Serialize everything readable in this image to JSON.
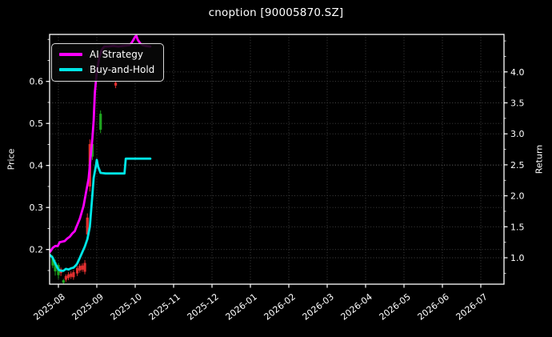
{
  "title": "cnoption [90005870.SZ]",
  "legend": {
    "items": [
      {
        "label": "AI Strategy",
        "color": "#ff00ff"
      },
      {
        "label": "Buy-and-Hold",
        "color": "#00e6e6"
      }
    ]
  },
  "colors": {
    "background": "#000000",
    "text": "#ffffff",
    "spine": "#ffffff",
    "grid": "#555555",
    "candle_up": "#1fa51f",
    "candle_down": "#e02f2f",
    "ai_strategy": "#ff00ff",
    "buy_and_hold": "#00e6e6"
  },
  "chart_data": {
    "type": "line",
    "title": "cnoption [90005870.SZ]",
    "grid": true,
    "legend_position": "upper-left",
    "left_axis": {
      "label": "Price",
      "ticks": [
        0.2,
        0.3,
        0.4,
        0.5,
        0.6
      ],
      "range": [
        0.105,
        0.712
      ]
    },
    "right_axis": {
      "label": "Return",
      "ticks": [
        1.0,
        1.5,
        2.0,
        2.5,
        3.0,
        3.5,
        4.0
      ],
      "range": [
        0.57,
        4.61
      ]
    },
    "x_axis": {
      "tick_labels": [
        "2025-08",
        "2025-09",
        "2025-10",
        "2025-11",
        "2025-12",
        "2026-01",
        "2026-02",
        "2026-03",
        "2026-04",
        "2026-05",
        "2026-06",
        "2026-07"
      ],
      "range": [
        "2025-07-24",
        "2026-07-19"
      ],
      "label_rotation": -38
    },
    "series": [
      {
        "name": "AI Strategy",
        "color": "#ff00ff",
        "axis": "return",
        "points": [
          [
            "2025-07-24",
            1.13
          ],
          [
            "2025-07-25",
            1.1
          ],
          [
            "2025-07-27",
            1.16
          ],
          [
            "2025-07-29",
            1.19
          ],
          [
            "2025-07-31",
            1.19
          ],
          [
            "2025-08-02",
            1.25
          ],
          [
            "2025-08-04",
            1.26
          ],
          [
            "2025-08-06",
            1.27
          ],
          [
            "2025-08-08",
            1.31
          ],
          [
            "2025-08-10",
            1.34
          ],
          [
            "2025-08-12",
            1.39
          ],
          [
            "2025-08-14",
            1.43
          ],
          [
            "2025-08-15",
            1.48
          ],
          [
            "2025-08-18",
            1.63
          ],
          [
            "2025-08-21",
            1.84
          ],
          [
            "2025-08-23",
            2.06
          ],
          [
            "2025-08-25",
            2.28
          ],
          [
            "2025-08-26",
            2.49
          ],
          [
            "2025-08-27",
            2.71
          ],
          [
            "2025-08-28",
            2.93
          ],
          [
            "2025-08-29",
            3.22
          ],
          [
            "2025-08-30",
            3.67
          ],
          [
            "2025-09-01",
            4.0
          ],
          [
            "2025-09-03",
            4.23
          ],
          [
            "2025-09-05",
            4.36
          ],
          [
            "2025-09-07",
            4.41
          ],
          [
            "2025-09-10",
            4.41
          ],
          [
            "2025-09-14",
            4.42
          ],
          [
            "2025-09-18",
            4.41
          ],
          [
            "2025-09-22",
            4.42
          ],
          [
            "2025-09-27",
            4.43
          ],
          [
            "2025-09-29",
            4.48
          ],
          [
            "2025-10-01",
            4.57
          ],
          [
            "2025-10-02",
            4.58
          ],
          [
            "2025-10-03",
            4.52
          ],
          [
            "2025-10-05",
            4.46
          ],
          [
            "2025-10-07",
            4.43
          ],
          [
            "2025-10-09",
            4.42
          ],
          [
            "2025-10-13",
            4.41
          ]
        ]
      },
      {
        "name": "Buy-and-Hold",
        "color": "#00e6e6",
        "axis": "return",
        "points": [
          [
            "2025-07-24",
            1.06
          ],
          [
            "2025-07-25",
            1.04
          ],
          [
            "2025-07-27",
            1.0
          ],
          [
            "2025-07-28",
            0.95
          ],
          [
            "2025-07-30",
            0.87
          ],
          [
            "2025-08-01",
            0.81
          ],
          [
            "2025-08-03",
            0.79
          ],
          [
            "2025-08-05",
            0.79
          ],
          [
            "2025-08-07",
            0.82
          ],
          [
            "2025-08-09",
            0.81
          ],
          [
            "2025-08-11",
            0.83
          ],
          [
            "2025-08-13",
            0.84
          ],
          [
            "2025-08-15",
            0.88
          ],
          [
            "2025-08-16",
            0.91
          ],
          [
            "2025-08-18",
            1.0
          ],
          [
            "2025-08-20",
            1.09
          ],
          [
            "2025-08-22",
            1.18
          ],
          [
            "2025-08-24",
            1.3
          ],
          [
            "2025-08-26",
            1.5
          ],
          [
            "2025-08-27",
            1.76
          ],
          [
            "2025-08-28",
            2.02
          ],
          [
            "2025-08-29",
            2.29
          ],
          [
            "2025-08-31",
            2.51
          ],
          [
            "2025-09-01",
            2.58
          ],
          [
            "2025-09-02",
            2.47
          ],
          [
            "2025-09-04",
            2.37
          ],
          [
            "2025-09-08",
            2.36
          ],
          [
            "2025-09-12",
            2.36
          ],
          [
            "2025-09-16",
            2.36
          ],
          [
            "2025-09-20",
            2.36
          ],
          [
            "2025-09-23",
            2.36
          ],
          [
            "2025-09-24",
            2.6
          ],
          [
            "2025-09-28",
            2.6
          ],
          [
            "2025-10-02",
            2.6
          ],
          [
            "2025-10-06",
            2.6
          ],
          [
            "2025-10-13",
            2.6
          ]
        ]
      }
    ],
    "candles": {
      "axis": "price",
      "up_color": "#1fa51f",
      "down_color": "#e02f2f",
      "columns": [
        "date",
        "open",
        "high",
        "low",
        "close"
      ],
      "data": [
        [
          "2025-07-27",
          0.162,
          0.186,
          0.156,
          0.181
        ],
        [
          "2025-07-29",
          0.148,
          0.176,
          0.138,
          0.17
        ],
        [
          "2025-08-01",
          0.139,
          0.168,
          0.13,
          0.163
        ],
        [
          "2025-08-03",
          0.153,
          0.157,
          0.137,
          0.144
        ],
        [
          "2025-08-05",
          0.121,
          0.13,
          0.114,
          0.127
        ],
        [
          "2025-08-07",
          0.137,
          0.141,
          0.123,
          0.128
        ],
        [
          "2025-08-09",
          0.141,
          0.146,
          0.127,
          0.132
        ],
        [
          "2025-08-11",
          0.143,
          0.148,
          0.13,
          0.135
        ],
        [
          "2025-08-13",
          0.146,
          0.151,
          0.128,
          0.134
        ],
        [
          "2025-08-16",
          0.156,
          0.161,
          0.137,
          0.143
        ],
        [
          "2025-08-18",
          0.161,
          0.166,
          0.145,
          0.15
        ],
        [
          "2025-08-20",
          0.162,
          0.167,
          0.147,
          0.152
        ],
        [
          "2025-08-22",
          0.168,
          0.175,
          0.141,
          0.147
        ],
        [
          "2025-08-24",
          0.276,
          0.286,
          0.224,
          0.236
        ],
        [
          "2025-08-26",
          0.451,
          0.462,
          0.338,
          0.35
        ],
        [
          "2025-08-28",
          0.421,
          0.459,
          0.413,
          0.451
        ],
        [
          "2025-09-04",
          0.485,
          0.531,
          0.477,
          0.523
        ],
        [
          "2025-09-16",
          0.597,
          0.601,
          0.584,
          0.59
        ]
      ]
    }
  }
}
